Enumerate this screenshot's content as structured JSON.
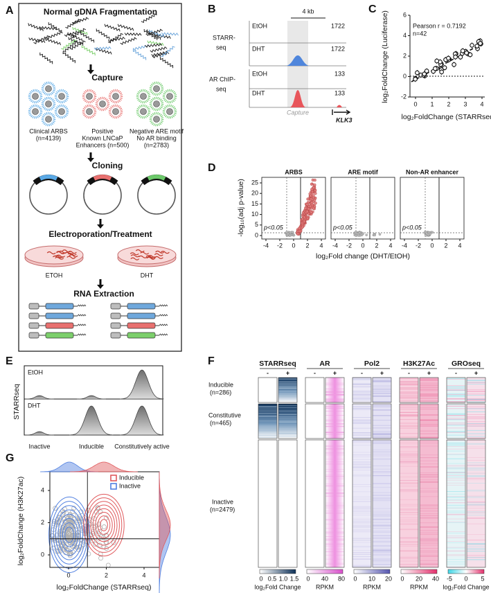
{
  "panel_a": {
    "label": "A",
    "title": "Normal gDNA Fragmentation",
    "steps": [
      "Capture",
      "Cloning",
      "Electroporation/Treatment",
      "RNA Extraction"
    ],
    "libraries": [
      {
        "lines": [
          "Clinical ARBS",
          "(n=4139)"
        ]
      },
      {
        "lines": [
          "Positive",
          "Known LNCaP",
          "Enhancers (n=500)"
        ]
      },
      {
        "lines": [
          "Negative ARE motif",
          "No AR binding",
          "(n=2783)"
        ]
      }
    ],
    "treatments": [
      "ETOH",
      "DHT"
    ]
  },
  "panel_b": {
    "label": "B",
    "scale": "4 kb",
    "groups": [
      {
        "lines": [
          "STARR-",
          "seq"
        ],
        "tracks": [
          {
            "condition": "EtOH",
            "max": 1722
          },
          {
            "condition": "DHT",
            "max": 1722
          }
        ]
      },
      {
        "lines": [
          "AR ChIP-",
          "seq"
        ],
        "tracks": [
          {
            "condition": "EtOH",
            "max": 133
          },
          {
            "condition": "DHT",
            "max": 133
          }
        ]
      }
    ],
    "region": "Capture",
    "gene": "KLK3"
  },
  "panel_c": {
    "label": "C",
    "annotation_lines": [
      "Pearson r = 0.7192",
      "n=42"
    ],
    "y_label": "log₂FoldChange (Luciferase)",
    "x_label": "log₂FoldChange (STARRseq)",
    "yticks": [
      -2,
      0,
      2,
      4,
      6
    ],
    "xticks": [
      0,
      1,
      2,
      3,
      4
    ]
  },
  "panel_d": {
    "label": "D",
    "facets": [
      "ARBS",
      "ARE motif",
      "Non-AR enhancer"
    ],
    "y_label": "-log₁₀(adj p-value)",
    "yticks": [
      0,
      5,
      10,
      15,
      20,
      25
    ],
    "xticks": [
      -4,
      -2,
      0,
      2,
      4
    ],
    "threshold_label": "p<0.05",
    "x_label": "log₂Fold change (DHT/EtOH)"
  },
  "panel_e": {
    "label": "E",
    "y_label": "STARRseq",
    "conditions": [
      "EtOH",
      "DHT"
    ],
    "classes": [
      "Inactive",
      "Inducible",
      "Constitutively active"
    ]
  },
  "panel_f": {
    "label": "F",
    "tracks": [
      "STARRseq",
      "AR",
      "Pol2",
      "H3K27Ac",
      "GROseq"
    ],
    "conditions": [
      "-",
      "+"
    ],
    "groups": [
      {
        "name": "Inducible",
        "count": "(n=286)"
      },
      {
        "name": "Constitutive",
        "count": "(n=465)"
      },
      {
        "name": "Inactive",
        "count": "(n=2479)"
      }
    ],
    "colorbars": [
      {
        "ticks": [
          "0",
          "0.5",
          "1.0",
          "1.5"
        ],
        "unit": "log₂Fold Change"
      },
      {
        "ticks": [
          "0",
          "40",
          "80"
        ],
        "unit": "RPKM"
      },
      {
        "ticks": [
          "0",
          "10",
          "20"
        ],
        "unit": "RPKM"
      },
      {
        "ticks": [
          "0",
          "20",
          "40"
        ],
        "unit": "RPKM"
      },
      {
        "ticks": [
          "-5",
          "0",
          "5"
        ],
        "unit": "log₂Fold Change"
      }
    ]
  },
  "panel_g": {
    "label": "G",
    "y_label": "log₂FoldChange (H3K27ac)",
    "x_label": "log₂FoldChange (STARRseq)",
    "yticks": [
      0,
      2,
      4
    ],
    "xticks": [
      0,
      2,
      4
    ],
    "legend": [
      {
        "name": "Inducible",
        "color": "#e0585b"
      },
      {
        "name": "Inactive",
        "color": "#4f7fe0"
      }
    ]
  }
}
